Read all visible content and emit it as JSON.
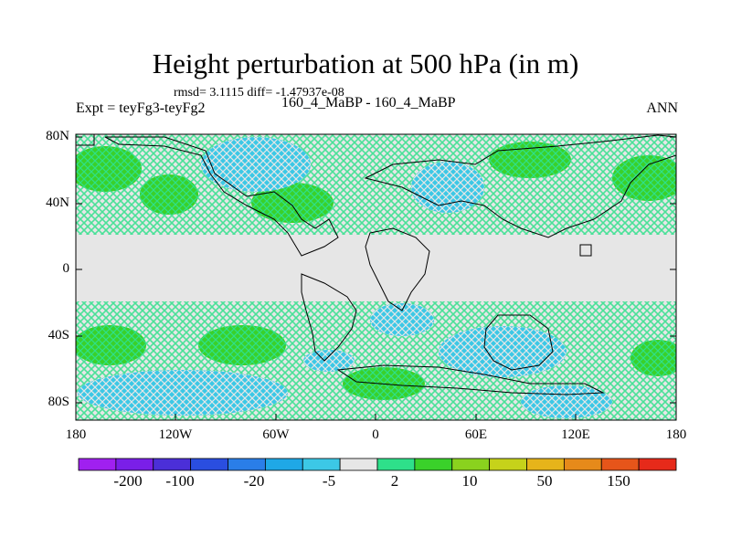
{
  "title": "Height perturbation at 500 hPa (in m)",
  "stats": "rmsd= 3.1115  diff= -1.47937e-08",
  "experiment": "Expt = teyFg3-teyFg2",
  "case": "160_4_MaBP - 160_4_MaBP",
  "season": "ANN",
  "lat_labels": [
    "80N",
    "40N",
    "0",
    "40S",
    "80S"
  ],
  "lon_labels": [
    "180",
    "120W",
    "60W",
    "0",
    "60E",
    "120E",
    "180"
  ],
  "colorbar": {
    "colors": [
      "#a020f0",
      "#7a1fe8",
      "#4b2fd8",
      "#2a4ee0",
      "#2a7ee8",
      "#1fa8e6",
      "#3cc8e6",
      "#e6e6e6",
      "#2ee08a",
      "#3ad12a",
      "#8ad21e",
      "#c6d21a",
      "#e6b41a",
      "#e68a1a",
      "#e6551a",
      "#e62a1a"
    ],
    "labels": [
      "-200",
      "-100",
      "-20",
      "-5",
      "2",
      "10",
      "50",
      "150"
    ]
  },
  "legend_colors": {
    "cyan": "#3cc8e6",
    "green": "#2ee08a",
    "darkgreen": "#3ad12a",
    "grey": "#e6e6e6",
    "outline": "#000000"
  }
}
